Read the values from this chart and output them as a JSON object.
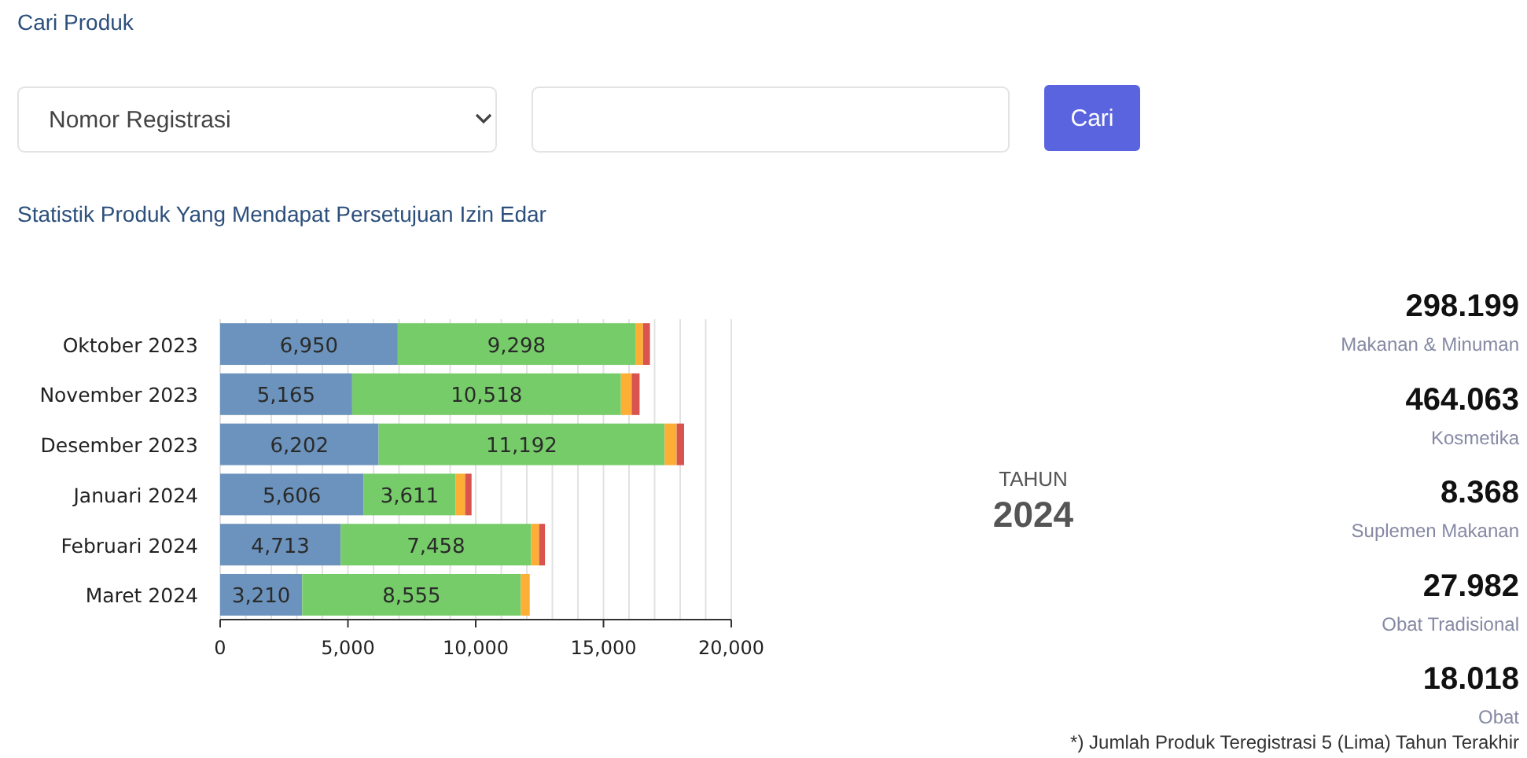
{
  "chart_data": [
    {
      "type": "bar",
      "orientation": "horizontal",
      "stacked": true,
      "title": "Statistik Produk Yang Mendapat Persetujuan Izin Edar",
      "annotations": [
        "Cari Produk",
        "Nomor Registrasi",
        "Cari"
      ],
      "categories": [
        "Oktober 2023",
        "November 2023",
        "Desember 2023",
        "Januari 2024",
        "Februari 2024",
        "Maret 2024"
      ],
      "series": [
        {
          "color": "#6b93bd",
          "values": [
            6950,
            5165,
            6202,
            5606,
            4713,
            3210
          ],
          "value_labels": [
            "6,950",
            "5,165",
            "6,202",
            "5,606",
            "4,713",
            "3,210"
          ]
        },
        {
          "color": "#77cc6a",
          "values": [
            9298,
            10518,
            11192,
            3611,
            7458,
            8555
          ],
          "value_labels": [
            "9,298",
            "10,518",
            "11,192",
            "3,611",
            "7,458",
            "8,555"
          ]
        },
        {
          "color": "#fdae35",
          "values": [
            300,
            420,
            470,
            370,
            310,
            350
          ]
        },
        {
          "color": "#d9534f",
          "values": [
            270,
            310,
            290,
            250,
            230,
            null
          ]
        }
      ],
      "xlim": [
        0,
        20000
      ],
      "xticks": [
        0,
        {
          "value": 1000,
          "label": null
        },
        {
          "value": 2000,
          "label": null
        },
        {
          "value": 3000,
          "label": null
        },
        {
          "value": 4000,
          "label": null
        },
        {
          "value": 5000,
          "label": "5,000"
        },
        {
          "value": 6000,
          "label": null
        },
        {
          "value": 7000,
          "label": null
        },
        {
          "value": 8000,
          "label": null
        },
        {
          "value": 9000,
          "label": null
        },
        {
          "value": 10000,
          "label": "10,000"
        },
        {
          "value": 11000,
          "label": null
        },
        {
          "value": 12000,
          "label": null
        },
        {
          "value": 13000,
          "label": null
        },
        {
          "value": 14000,
          "label": null
        },
        {
          "value": 15000,
          "label": "15,000"
        },
        {
          "value": 16000,
          "label": null
        },
        {
          "value": 17000,
          "label": null
        },
        {
          "value": 18000,
          "label": null
        },
        {
          "value": 19000,
          "label": null
        },
        {
          "value": 20000,
          "label": "20,000"
        }
      ],
      "grid": "x"
    },
    {
      "type": "other",
      "title": "TAHUN",
      "subtitle": "2024",
      "annotations": [
        "298.199",
        "Makanan & Minuman",
        "464.063",
        "Kosmetika",
        "8.368",
        "Suplemen Makanan",
        "27.982",
        "Obat Tradisional",
        "18.018",
        "Obat",
        "*) Jumlah Produk Teregistrasi 5 (Lima) Tahun Terakhir"
      ]
    }
  ]
}
